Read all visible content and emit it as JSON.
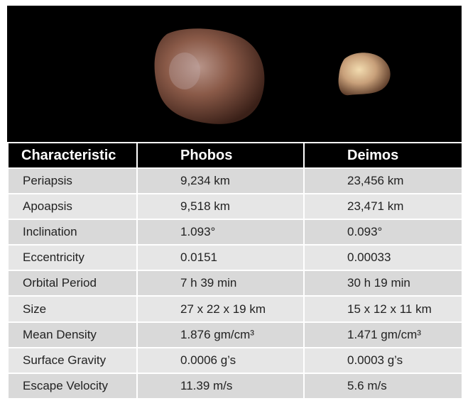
{
  "table": {
    "header": [
      "Characteristic",
      "Phobos",
      "Deimos"
    ],
    "rows": [
      [
        "Periapsis",
        "9,234 km",
        "23,456 km"
      ],
      [
        "Apoapsis",
        "9,518 km",
        "23,471 km"
      ],
      [
        "Inclination",
        "1.093°",
        "0.093°"
      ],
      [
        "Eccentricity",
        "0.0151",
        "0.00033"
      ],
      [
        "Orbital Period",
        "7 h 39 min",
        "30 h 19 min"
      ],
      [
        "Size",
        "27 x 22 x 19 km",
        "15 x 12 x 11 km"
      ],
      [
        "Mean Density",
        "1.876 gm/cm³",
        "1.471 gm/cm³"
      ],
      [
        "Surface Gravity",
        "0.0006 g’s",
        "0.0003 g’s"
      ],
      [
        "Escape Velocity",
        "11.39 m/s",
        "5.6 m/s"
      ]
    ]
  }
}
